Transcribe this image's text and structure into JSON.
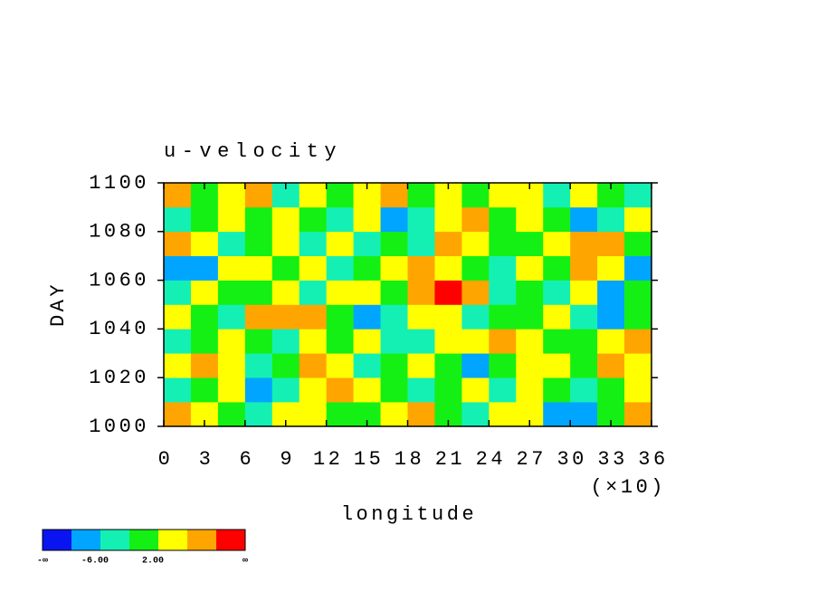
{
  "chart_data": {
    "type": "heatmap",
    "title": "u-velocity",
    "xlabel": "longitude",
    "ylabel": "DAY",
    "x_multiplier": "(×10)",
    "xlim": [
      0,
      36
    ],
    "xticks": [
      0,
      3,
      6,
      9,
      12,
      15,
      18,
      21,
      24,
      27,
      30,
      33,
      36
    ],
    "ylim": [
      1000,
      1100
    ],
    "yticks": [
      1000,
      1020,
      1040,
      1060,
      1080,
      1100
    ],
    "xbins": [
      0,
      2,
      4,
      6,
      8,
      10,
      12,
      14,
      16,
      18,
      20,
      22,
      24,
      26,
      28,
      30,
      32,
      34,
      36
    ],
    "ybins": [
      1000,
      1010,
      1020,
      1030,
      1040,
      1050,
      1060,
      1070,
      1080,
      1090,
      1100
    ],
    "z": [
      [
        8,
        4,
        1,
        -3,
        3,
        5,
        0,
        -2,
        2,
        6,
        -1,
        -4,
        3,
        5,
        -9,
        -8,
        1,
        7
      ],
      [
        -3,
        1,
        5,
        -8,
        -4,
        2,
        6,
        3,
        -2,
        -5,
        -1,
        2,
        -3,
        4,
        1,
        -4,
        0,
        2
      ],
      [
        4,
        8,
        2,
        -3,
        0,
        7,
        3,
        -4,
        1,
        3,
        -2,
        -7,
        0,
        5,
        2,
        -1,
        6,
        3
      ],
      [
        -4,
        -2,
        3,
        1,
        -5,
        2,
        -1,
        4,
        -6,
        -3,
        2,
        5,
        8,
        3,
        -2,
        1,
        4,
        9
      ],
      [
        2,
        0,
        -3,
        6,
        9,
        8,
        -1,
        -8,
        -4,
        2,
        3,
        -5,
        -2,
        0,
        4,
        -3,
        -7,
        1
      ],
      [
        -3,
        5,
        1,
        -2,
        3,
        -4,
        2,
        5,
        -1,
        9,
        11,
        7,
        -3,
        1,
        -5,
        3,
        -8,
        -2
      ],
      [
        -9,
        -7,
        2,
        4,
        -1,
        3,
        -3,
        1,
        3,
        8,
        5,
        0,
        -4,
        2,
        -2,
        6,
        2,
        -9
      ],
      [
        7,
        3,
        -4,
        -1,
        5,
        -3,
        2,
        -6,
        0,
        -3,
        9,
        4,
        1,
        -2,
        3,
        8,
        9,
        0
      ],
      [
        -5,
        1,
        2,
        -2,
        4,
        0,
        -4,
        3,
        -7,
        -3,
        3,
        6,
        -2,
        5,
        0,
        -8,
        -3,
        4
      ],
      [
        8,
        -1,
        3,
        6,
        -3,
        4,
        1,
        5,
        9,
        -2,
        3,
        -1,
        4,
        2,
        -4,
        3,
        1,
        -3
      ]
    ],
    "levels": [
      -10,
      -6,
      -2,
      2,
      6,
      10
    ],
    "colors": [
      "#0a14f0",
      "#00a5ff",
      "#14f0b4",
      "#14f014",
      "#ffff00",
      "#ffa500",
      "#ff0000"
    ],
    "colorbar_ticks": [
      {
        "value": -6,
        "label": "-6.00"
      },
      {
        "value": 2,
        "label": "2.00"
      }
    ],
    "colorbar_low_label": "-∞",
    "colorbar_high_label": "∞"
  }
}
